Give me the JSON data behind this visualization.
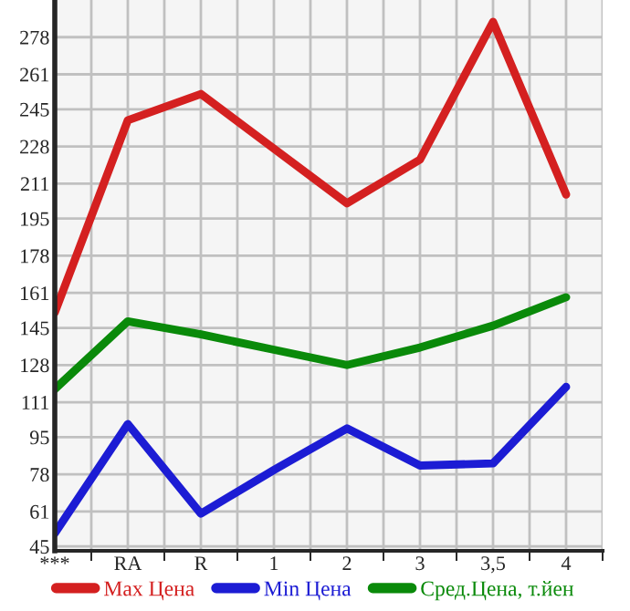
{
  "chart_data": {
    "type": "line",
    "categories": [
      "***",
      "RA",
      "R",
      "1",
      "2",
      "3",
      "3,5",
      "4"
    ],
    "series": [
      {
        "name": "Max Цена",
        "color": "#d42020",
        "values": [
          152,
          240,
          252,
          227,
          202,
          222,
          285,
          206
        ]
      },
      {
        "name": "Min Цена",
        "color": "#1c1cd4",
        "values": [
          51,
          101,
          60,
          80,
          99,
          82,
          83,
          118
        ]
      },
      {
        "name": "Сред.Цена, т.йен",
        "color": "#0a8a0a",
        "values": [
          117,
          148,
          142,
          135,
          128,
          136,
          146,
          159
        ]
      }
    ],
    "ylim": [
      43,
      295
    ],
    "yticks": [
      45,
      61,
      78,
      95,
      111,
      128,
      145,
      161,
      178,
      195,
      211,
      228,
      245,
      261,
      278
    ],
    "grid": true,
    "legend": "bottom",
    "marker": "none",
    "line_style": "solid"
  }
}
